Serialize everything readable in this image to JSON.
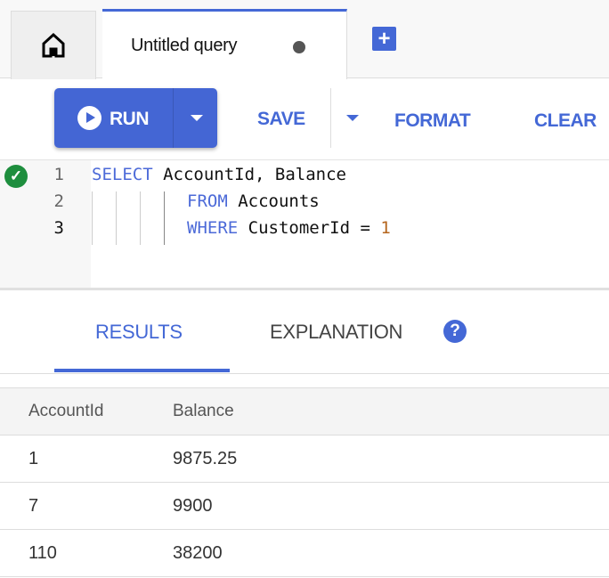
{
  "tabs": {
    "home_icon": "home-icon",
    "query_title": "Untitled query",
    "unsaved_indicator": "unsaved-dot",
    "add_icon": "plus-icon",
    "add_glyph": "+"
  },
  "toolbar": {
    "run_label": "RUN",
    "save_label": "SAVE",
    "format_label": "FORMAT",
    "clear_label": "CLEAR"
  },
  "editor": {
    "status_icon": "check-circle-icon",
    "status_glyph": "✓",
    "lines": [
      {
        "number": "1",
        "keyword": "SELECT",
        "rest": " AccountId, Balance"
      },
      {
        "number": "2",
        "keyword": "FROM",
        "rest": " Accounts"
      },
      {
        "number": "3",
        "keyword": "WHERE",
        "rest": " CustomerId = ",
        "literal": "1"
      }
    ]
  },
  "results_tabs": {
    "results": "RESULTS",
    "explanation": "EXPLANATION",
    "help_glyph": "?"
  },
  "table": {
    "columns": [
      "AccountId",
      "Balance"
    ],
    "rows": [
      [
        "1",
        "9875.25"
      ],
      [
        "7",
        "9900"
      ],
      [
        "110",
        "38200"
      ]
    ]
  },
  "colors": {
    "accent": "#4468d6",
    "keyword": "#4c6ad8",
    "literal": "#b5651d",
    "success": "#1e8e3e"
  }
}
